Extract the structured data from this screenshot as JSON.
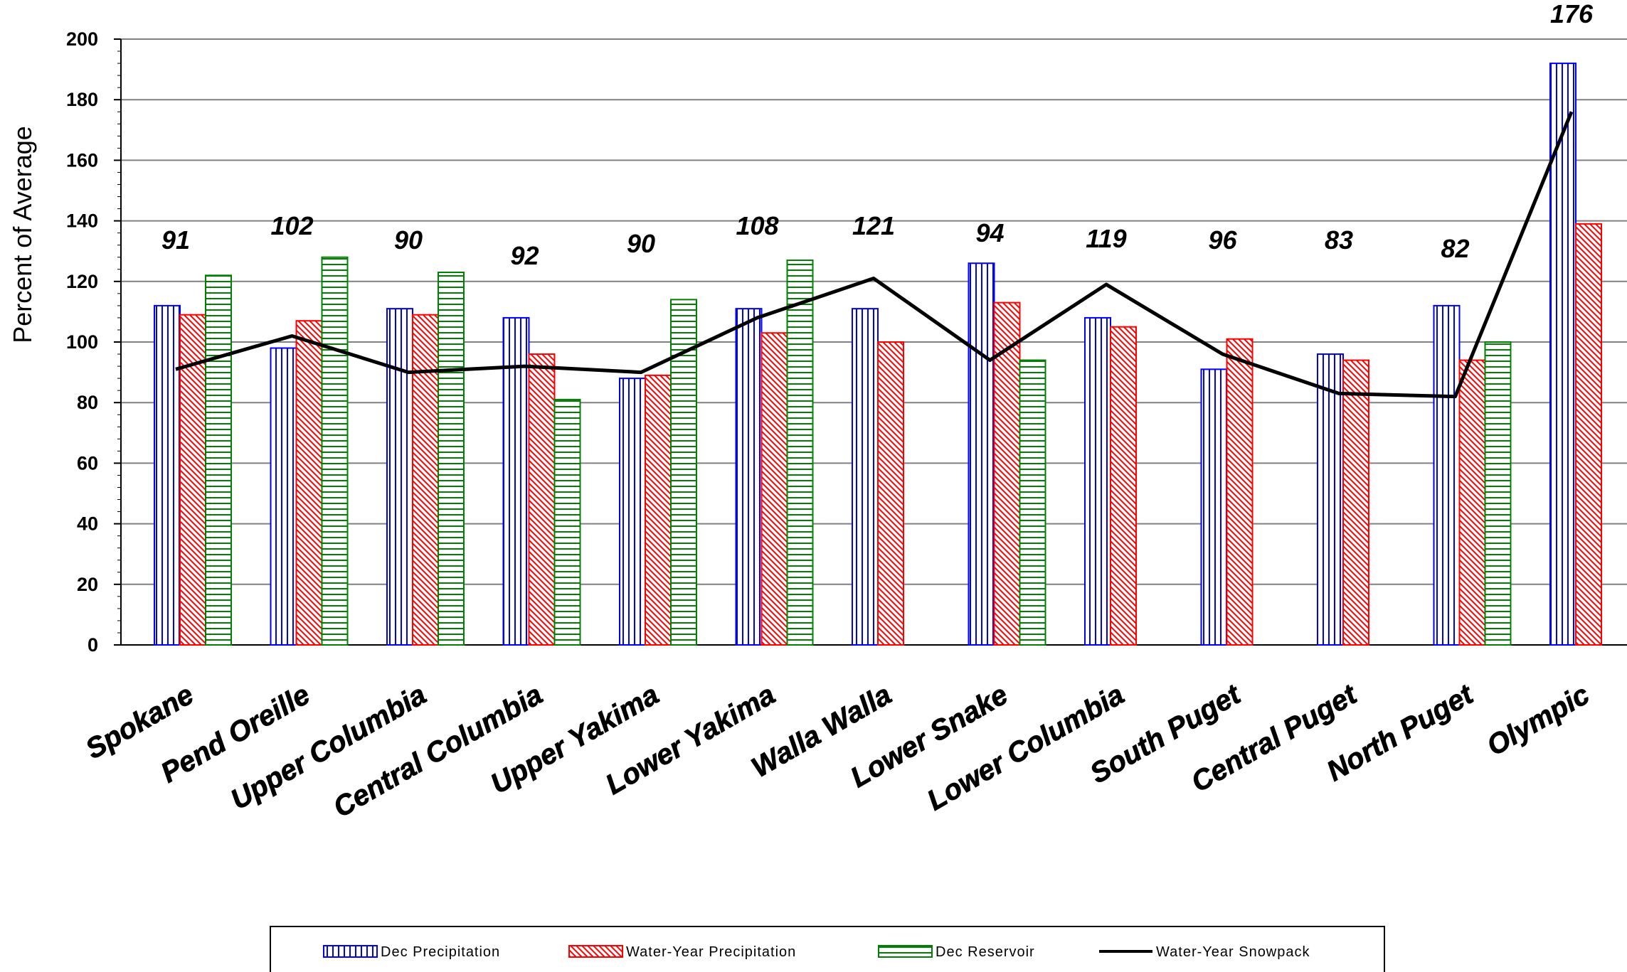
{
  "chart_data": {
    "type": "bar",
    "categories": [
      "Spokane",
      "Pend Oreille",
      "Upper Columbia",
      "Central Columbia",
      "Upper Yakima",
      "Lower Yakima",
      "Walla Walla",
      "Lower Snake",
      "Lower Columbia",
      "South Puget",
      "Central Puget",
      "North Puget",
      "Olympic"
    ],
    "series": [
      {
        "name": "Dec Precipitation",
        "kind": "bar",
        "pattern": "vertical-lines",
        "color": "#0000ff",
        "values": [
          112,
          98,
          111,
          108,
          88,
          111,
          111,
          126,
          108,
          91,
          96,
          112,
          192
        ]
      },
      {
        "name": "Water-Year Precipitation",
        "kind": "bar",
        "pattern": "diagonal-lines",
        "color": "#ff0000",
        "values": [
          109,
          107,
          109,
          96,
          89,
          103,
          100,
          113,
          105,
          101,
          94,
          94,
          139
        ]
      },
      {
        "name": "Dec Reservoir",
        "kind": "bar",
        "pattern": "horizontal-lines",
        "color": "#008000",
        "values": [
          122,
          128,
          123,
          81,
          114,
          127,
          null,
          94,
          null,
          null,
          null,
          100,
          null
        ]
      },
      {
        "name": "Water-Year Snowpack",
        "kind": "line",
        "color": "#000000",
        "values": [
          91,
          102,
          90,
          92,
          90,
          108,
          121,
          94,
          119,
          96,
          83,
          82,
          176
        ]
      }
    ],
    "data_labels": [
      "91",
      "102",
      "90",
      "92",
      "90",
      "108",
      "121",
      "94",
      "119",
      "96",
      "83",
      "82",
      "176"
    ],
    "title": "",
    "xlabel": "",
    "ylabel": "Percent of Average",
    "ylim": [
      0,
      200
    ],
    "yticks": [
      "0",
      "20",
      "40",
      "60",
      "80",
      "100",
      "120",
      "140",
      "160",
      "180",
      "200"
    ],
    "grid": "horizontal",
    "legend_position": "bottom"
  }
}
